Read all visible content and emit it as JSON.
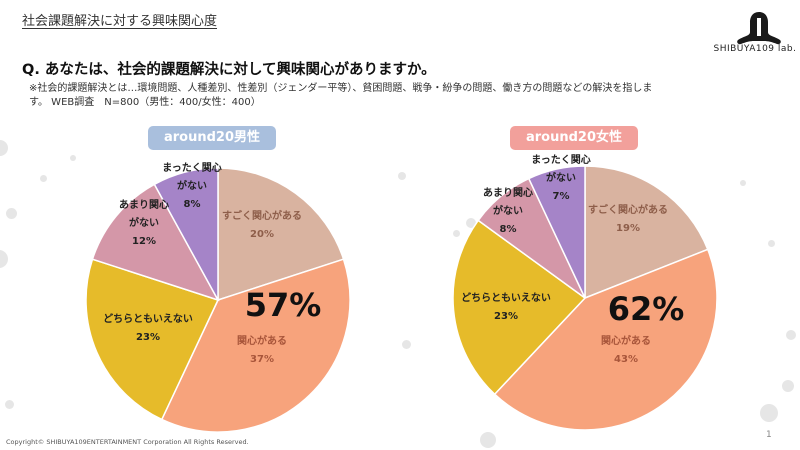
{
  "header": {
    "title": "社会課題解決に対する興味関心度",
    "logo_text": "SHIBUYA109 lab."
  },
  "question": "Q. あなたは、社会的課題解決に対して興味関心がありますか。",
  "note": {
    "line1": "※社会的課題解決とは…環境問題、人種差別、性差別（ジェンダー平等）、貧困問題、戦争・紛争の問題、働き方の問題などの解決を指しま",
    "line2": "す。 WEB調査　N=800（男性：400/女性：400）"
  },
  "colors": {
    "sugoku": "#d9b3a0",
    "kanshin": "#f7a37c",
    "dochira": "#e6bb2a",
    "amari": "#d497a8",
    "mattaku": "#a584c8",
    "male_pill": "#a9bfdd",
    "female_pill": "#f2a09b"
  },
  "chart_data": [
    {
      "type": "pie",
      "title": "around20男性",
      "big_label": "57%",
      "slices": [
        {
          "key": "sugoku",
          "label": "すごく関心がある",
          "value": 20,
          "value_label": "20%"
        },
        {
          "key": "kanshin",
          "label": "関心がある",
          "value": 37,
          "value_label": "37%"
        },
        {
          "key": "dochira",
          "label": "どちらともいえない",
          "value": 23,
          "value_label": "23%"
        },
        {
          "key": "amari",
          "label": "あまり関心がない",
          "value": 12,
          "value_label": "12%"
        },
        {
          "key": "mattaku",
          "label": "まったく関心がない",
          "value": 8,
          "value_label": "8%"
        }
      ]
    },
    {
      "type": "pie",
      "title": "around20女性",
      "big_label": "62%",
      "slices": [
        {
          "key": "sugoku",
          "label": "すごく関心がある",
          "value": 19,
          "value_label": "19%"
        },
        {
          "key": "kanshin",
          "label": "関心がある",
          "value": 43,
          "value_label": "43%"
        },
        {
          "key": "dochira",
          "label": "どちらともいえない",
          "value": 23,
          "value_label": "23%"
        },
        {
          "key": "amari",
          "label": "あまり関心がない",
          "value": 8,
          "value_label": "8%"
        },
        {
          "key": "mattaku",
          "label": "まったく関心がない",
          "value": 7,
          "value_label": "7%"
        }
      ]
    }
  ],
  "footer": {
    "copyright": "Copyright© SHIBUYA109ENTERTAINMENT Corporation All Rights Reserved.",
    "page_number": "1"
  }
}
